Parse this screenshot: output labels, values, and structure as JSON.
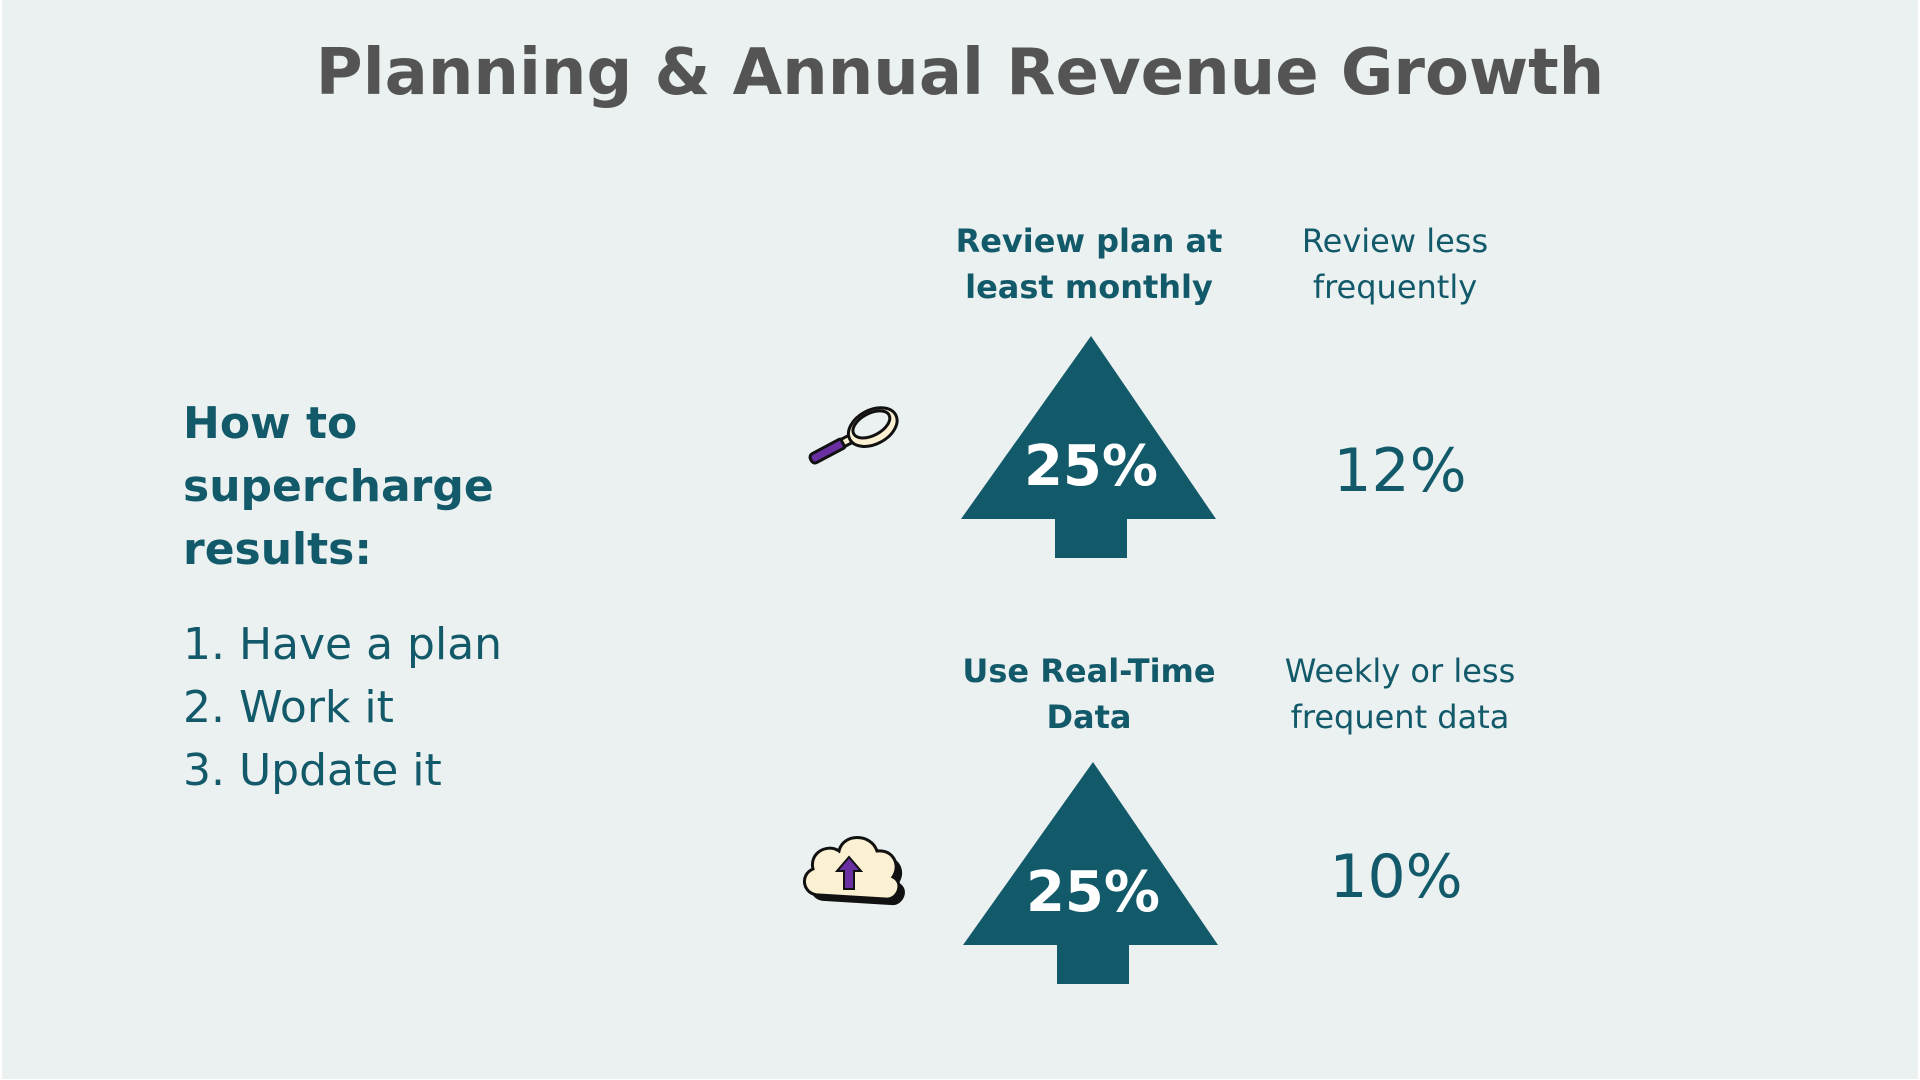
{
  "title": "Planning & Annual Revenue Growth",
  "left": {
    "heading": "How to supercharge results:",
    "steps": [
      "1. Have a plan",
      "2. Work it",
      "3. Update it"
    ]
  },
  "rows": [
    {
      "icon": "magnifying-glass-icon",
      "label_bold_line1": "Review plan at",
      "label_bold_line2": "least monthly",
      "arrow_value": "25%",
      "compare_label_line1": "Review less",
      "compare_label_line2": "frequently",
      "compare_value": "12%"
    },
    {
      "icon": "cloud-upload-icon",
      "label_bold_line1": "Use Real-Time",
      "label_bold_line2": "Data",
      "arrow_value": "25%",
      "compare_label_line1": "Weekly or less",
      "compare_label_line2": "frequent data",
      "compare_value": "10%"
    }
  ],
  "colors": {
    "background": "#ebf0f0",
    "accent": "#12596a",
    "title": "#545454",
    "icon_purple": "#6a2fa0",
    "icon_cream": "#fbf1d2"
  }
}
